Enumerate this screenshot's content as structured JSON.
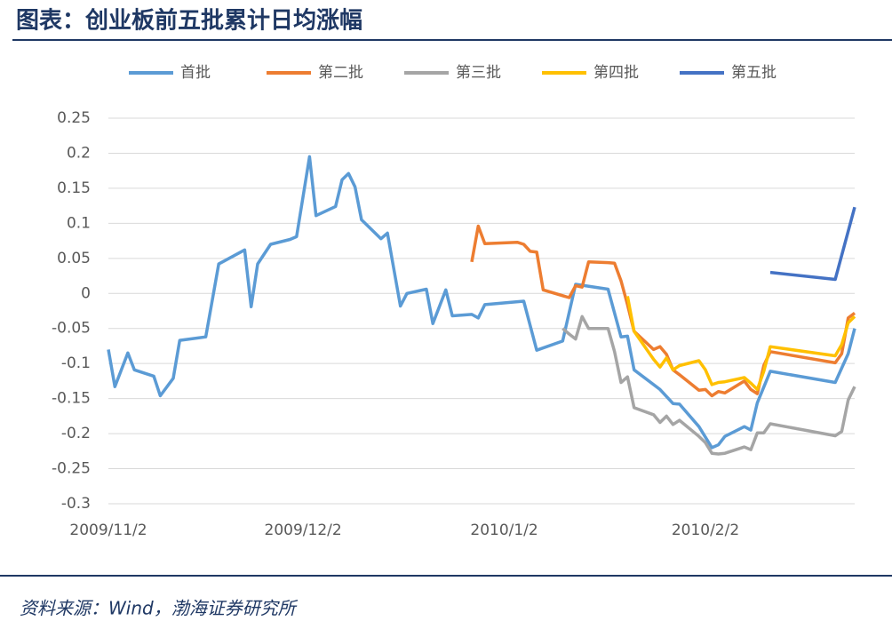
{
  "chart_data": {
    "type": "line",
    "title": "图表：创业板前五批累计日均涨幅",
    "source": "资料来源：Wind，渤海证券研究所",
    "xlim": [
      "2009/11/2",
      "2010/2/25"
    ],
    "xticks": [
      "2009/11/2",
      "2009/12/2",
      "2010/1/2",
      "2010/2/2"
    ],
    "ylim": [
      -0.3,
      0.25
    ],
    "yticks": [
      0.25,
      0.2,
      0.15,
      0.1,
      0.05,
      0,
      -0.05,
      -0.1,
      -0.15,
      -0.2,
      -0.25,
      -0.3
    ],
    "grid": true,
    "legend": "top",
    "series": [
      {
        "name": "首批",
        "color": "#5b9bd5",
        "x": [
          "2009/11/2",
          "2009/11/3",
          "2009/11/5",
          "2009/11/6",
          "2009/11/9",
          "2009/11/10",
          "2009/11/12",
          "2009/11/13",
          "2009/11/17",
          "2009/11/19",
          "2009/11/23",
          "2009/11/24",
          "2009/11/25",
          "2009/11/27",
          "2009/11/30",
          "2009/12/1",
          "2009/12/3",
          "2009/12/4",
          "2009/12/7",
          "2009/12/8",
          "2009/12/9",
          "2009/12/10",
          "2009/12/11",
          "2009/12/14",
          "2009/12/15",
          "2009/12/17",
          "2009/12/18",
          "2009/12/21",
          "2009/12/22",
          "2009/12/24",
          "2009/12/25",
          "2009/12/28",
          "2009/12/29",
          "2009/12/30",
          "2010/1/5",
          "2010/1/7",
          "2010/1/11",
          "2010/1/13",
          "2010/1/18",
          "2010/1/20",
          "2010/1/21",
          "2010/1/22",
          "2010/1/26",
          "2010/1/28",
          "2010/1/29",
          "2010/2/1",
          "2010/2/3",
          "2010/2/4",
          "2010/2/5",
          "2010/2/8",
          "2010/2/9",
          "2010/2/10",
          "2010/2/12",
          "2010/2/22",
          "2010/2/24",
          "2010/2/25"
        ],
        "values": [
          -0.08,
          -0.133,
          -0.085,
          -0.109,
          -0.118,
          -0.146,
          -0.121,
          -0.067,
          -0.062,
          0.042,
          0.062,
          -0.019,
          0.042,
          0.07,
          0.077,
          0.081,
          0.195,
          0.111,
          0.124,
          0.162,
          0.171,
          0.152,
          0.105,
          0.078,
          0.086,
          -0.018,
          0,
          0.006,
          -0.043,
          0.005,
          -0.032,
          -0.03,
          -0.035,
          -0.016,
          -0.011,
          -0.081,
          -0.068,
          0.013,
          0.006,
          -0.062,
          -0.061,
          -0.109,
          -0.137,
          -0.157,
          -0.158,
          -0.19,
          -0.22,
          -0.216,
          -0.204,
          -0.19,
          -0.195,
          -0.156,
          -0.111,
          -0.127,
          -0.086,
          -0.05
        ]
      },
      {
        "name": "第二批",
        "color": "#ed7d31",
        "x": [
          "2009/12/28",
          "2009/12/29",
          "2009/12/30",
          "2010/1/4",
          "2010/1/5",
          "2010/1/6",
          "2010/1/7",
          "2010/1/8",
          "2010/1/12",
          "2010/1/13",
          "2010/1/14",
          "2010/1/15",
          "2010/1/18",
          "2010/1/19",
          "2010/1/20",
          "2010/1/21",
          "2010/1/22",
          "2010/1/25",
          "2010/1/26",
          "2010/1/27",
          "2010/1/28",
          "2010/1/29",
          "2010/2/1",
          "2010/2/2",
          "2010/2/3",
          "2010/2/4",
          "2010/2/5",
          "2010/2/8",
          "2010/2/9",
          "2010/2/10",
          "2010/2/11",
          "2010/2/12",
          "2010/2/22",
          "2010/2/23",
          "2010/2/24",
          "2010/2/25"
        ],
        "values": [
          0.045,
          0.096,
          0.071,
          0.073,
          0.07,
          0.06,
          0.059,
          0.005,
          -0.006,
          0.011,
          0.009,
          0.045,
          0.044,
          0.043,
          0.018,
          -0.016,
          -0.054,
          -0.08,
          -0.076,
          -0.087,
          -0.109,
          -0.116,
          -0.138,
          -0.137,
          -0.146,
          -0.14,
          -0.142,
          -0.125,
          -0.137,
          -0.143,
          -0.103,
          -0.083,
          -0.099,
          -0.086,
          -0.035,
          -0.028
        ]
      },
      {
        "name": "第三批",
        "color": "#a5a5a5",
        "x": [
          "2010/1/11",
          "2010/1/12",
          "2010/1/13",
          "2010/1/14",
          "2010/1/15",
          "2010/1/18",
          "2010/1/19",
          "2010/1/20",
          "2010/1/21",
          "2010/1/22",
          "2010/1/25",
          "2010/1/26",
          "2010/1/27",
          "2010/1/28",
          "2010/1/29",
          "2010/2/1",
          "2010/2/2",
          "2010/2/3",
          "2010/2/4",
          "2010/2/5",
          "2010/2/8",
          "2010/2/9",
          "2010/2/10",
          "2010/2/11",
          "2010/2/12",
          "2010/2/22",
          "2010/2/23",
          "2010/2/24",
          "2010/2/25"
        ],
        "values": [
          -0.05,
          -0.058,
          -0.065,
          -0.033,
          -0.05,
          -0.05,
          -0.083,
          -0.127,
          -0.119,
          -0.163,
          -0.173,
          -0.184,
          -0.175,
          -0.187,
          -0.181,
          -0.204,
          -0.213,
          -0.228,
          -0.229,
          -0.228,
          -0.219,
          -0.223,
          -0.199,
          -0.199,
          -0.186,
          -0.203,
          -0.197,
          -0.152,
          -0.133
        ]
      },
      {
        "name": "第四批",
        "color": "#ffc000",
        "x": [
          "2010/1/21",
          "2010/1/22",
          "2010/1/25",
          "2010/1/26",
          "2010/1/27",
          "2010/1/28",
          "2010/1/29",
          "2010/2/1",
          "2010/2/2",
          "2010/2/3",
          "2010/2/4",
          "2010/2/5",
          "2010/2/8",
          "2010/2/9",
          "2010/2/10",
          "2010/2/11",
          "2010/2/12",
          "2010/2/22",
          "2010/2/23",
          "2010/2/24",
          "2010/2/25"
        ],
        "values": [
          -0.004,
          -0.054,
          -0.094,
          -0.105,
          -0.092,
          -0.109,
          -0.103,
          -0.096,
          -0.109,
          -0.13,
          -0.127,
          -0.126,
          -0.12,
          -0.128,
          -0.137,
          -0.111,
          -0.076,
          -0.089,
          -0.073,
          -0.042,
          -0.033
        ]
      },
      {
        "name": "第五批",
        "color": "#4472c4",
        "x": [
          "2010/2/12",
          "2010/2/22",
          "2010/2/25"
        ],
        "values": [
          0.03,
          0.02,
          0.123
        ]
      }
    ]
  }
}
